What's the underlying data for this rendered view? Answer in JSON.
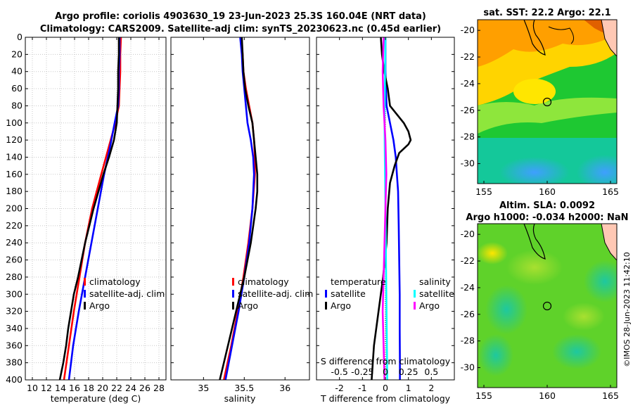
{
  "figure": {
    "title_line1": "Argo profile: coriolis 4903630_19 23-Jun-2023 25.3S 160.04E (NRT data)",
    "title_line2": "Climatology: CARS2009. Satellite-adj clim: synTS_20230623.nc (0.45d earlier)",
    "side_stamp": "©IMOS 28-Jun-2023 11:42:10"
  },
  "colors": {
    "climatology": "#ff0000",
    "satellite": "#0000ff",
    "argo": "#000000",
    "sat_salinity": "#00ffff",
    "argo_salinity": "#ff00ff"
  },
  "chart_data": [
    {
      "type": "line",
      "name": "temperature",
      "xlabel": "temperature (deg C)",
      "xlim": [
        9,
        29
      ],
      "ylim": [
        400,
        0
      ],
      "xticks": [
        10,
        12,
        14,
        16,
        18,
        20,
        22,
        24,
        26,
        28
      ],
      "yticks": [
        0,
        20,
        40,
        60,
        80,
        100,
        120,
        140,
        160,
        180,
        200,
        220,
        240,
        260,
        280,
        300,
        320,
        340,
        360,
        380,
        400
      ],
      "grid": true,
      "legend": [
        "climatology",
        "satellite-adj. clim",
        "Argo"
      ],
      "series": [
        {
          "name": "climatology",
          "color": "#ff0000",
          "depth": [
            0,
            20,
            40,
            60,
            80,
            100,
            130,
            160,
            200,
            240,
            280,
            320,
            360,
            400
          ],
          "values": [
            22.6,
            22.5,
            22.5,
            22.4,
            22.3,
            21.8,
            20.8,
            19.8,
            18.5,
            17.5,
            16.7,
            15.9,
            15.2,
            14.5
          ]
        },
        {
          "name": "satellite-adj. clim",
          "color": "#0000ff",
          "depth": [
            0,
            20,
            40,
            60,
            80,
            100,
            130,
            160,
            200,
            240,
            280,
            320,
            360,
            400
          ],
          "values": [
            22.4,
            22.4,
            22.3,
            22.3,
            22.2,
            21.7,
            21.0,
            20.2,
            19.3,
            18.4,
            17.5,
            16.6,
            15.8,
            15.2
          ]
        },
        {
          "name": "Argo",
          "color": "#000000",
          "depth": [
            0,
            20,
            40,
            60,
            80,
            100,
            120,
            140,
            160,
            180,
            200,
            220,
            240,
            260,
            280,
            300,
            320,
            340,
            360,
            380,
            400
          ],
          "values": [
            22.3,
            22.3,
            22.2,
            22.2,
            22.1,
            22.0,
            21.6,
            20.9,
            20.1,
            19.4,
            18.7,
            18.1,
            17.5,
            17.0,
            16.5,
            15.9,
            15.5,
            15.1,
            14.8,
            14.4,
            13.9
          ]
        }
      ]
    },
    {
      "type": "line",
      "name": "salinity",
      "xlabel": "salinity",
      "xlim": [
        34.6,
        36.3
      ],
      "ylim": [
        400,
        0
      ],
      "xticks": [
        35,
        35.5,
        36
      ],
      "legend": [
        "climatology",
        "satellite-adj. clim",
        "Argo"
      ],
      "series": [
        {
          "name": "climatology",
          "color": "#ff0000",
          "depth": [
            0,
            20,
            40,
            60,
            80,
            100,
            120,
            140,
            160,
            200,
            240,
            280,
            320,
            360,
            400
          ],
          "values": [
            35.46,
            35.48,
            35.49,
            35.52,
            35.56,
            35.6,
            35.62,
            35.63,
            35.63,
            35.6,
            35.55,
            35.49,
            35.42,
            35.34,
            35.25
          ]
        },
        {
          "name": "satellite-adj. clim",
          "color": "#0000ff",
          "depth": [
            0,
            20,
            40,
            60,
            80,
            100,
            120,
            140,
            160,
            200,
            240,
            280,
            320,
            360,
            400
          ],
          "values": [
            35.45,
            35.47,
            35.48,
            35.5,
            35.52,
            35.54,
            35.58,
            35.61,
            35.62,
            35.6,
            35.56,
            35.5,
            35.43,
            35.35,
            35.27
          ]
        },
        {
          "name": "Argo",
          "color": "#000000",
          "depth": [
            0,
            20,
            40,
            60,
            80,
            100,
            120,
            140,
            160,
            180,
            200,
            240,
            280,
            320,
            360,
            400
          ],
          "values": [
            35.47,
            35.48,
            35.49,
            35.51,
            35.55,
            35.6,
            35.62,
            35.64,
            35.66,
            35.66,
            35.64,
            35.58,
            35.5,
            35.4,
            35.3,
            35.2
          ]
        }
      ]
    },
    {
      "type": "line",
      "name": "differences",
      "xlabel": "T difference from climatology",
      "xlabel_top": "S difference from climatology",
      "xlim": [
        -3,
        3
      ],
      "ylim": [
        400,
        0
      ],
      "xticks": [
        -2,
        -1,
        0,
        1,
        2
      ],
      "xticks_top": [
        "-0.5",
        "-0.25",
        "0",
        "0.25",
        "0.5"
      ],
      "legend_temperature_title": "temperature",
      "legend_salinity_title": "salinity",
      "legend_temperature": [
        "satellite",
        "Argo"
      ],
      "legend_salinity": [
        "satellite",
        "Argo"
      ],
      "series": [
        {
          "name": "T satellite",
          "color": "#0000ff",
          "depth": [
            0,
            40,
            80,
            100,
            120,
            140,
            160,
            180,
            220,
            260,
            300,
            340,
            380,
            400
          ],
          "values": [
            0.0,
            0.0,
            0.05,
            0.2,
            0.35,
            0.45,
            0.5,
            0.55,
            0.58,
            0.6,
            0.62,
            0.62,
            0.63,
            0.63
          ]
        },
        {
          "name": "T Argo",
          "color": "#000000",
          "depth": [
            0,
            20,
            40,
            60,
            80,
            100,
            110,
            120,
            125,
            135,
            150,
            170,
            200,
            240,
            280,
            320,
            360,
            400
          ],
          "values": [
            -0.2,
            -0.15,
            -0.05,
            0.1,
            0.2,
            0.8,
            1.0,
            1.1,
            1.0,
            0.6,
            0.4,
            0.2,
            0.1,
            0.05,
            -0.1,
            -0.3,
            -0.5,
            -0.6
          ]
        },
        {
          "name": "S satellite",
          "color": "#00ffff",
          "depth": [
            0,
            100,
            200,
            300,
            400
          ],
          "values": [
            0.0,
            -0.01,
            0.0,
            0.01,
            0.02
          ]
        },
        {
          "name": "S Argo",
          "color": "#ff00ff",
          "depth": [
            0,
            40,
            80,
            120,
            160,
            200,
            240,
            280,
            320,
            360,
            400
          ],
          "values": [
            -0.02,
            -0.03,
            -0.02,
            0.0,
            0.01,
            0.0,
            -0.01,
            -0.02,
            -0.03,
            -0.02,
            -0.01
          ]
        }
      ]
    },
    {
      "type": "heatmap",
      "name": "sst_map",
      "title": "sat. SST: 22.2 Argo: 22.1",
      "xlim": [
        154.5,
        165.5
      ],
      "ylim": [
        -31.5,
        -19.2
      ],
      "xticks": [
        155,
        160,
        165
      ],
      "yticks": [
        -20,
        -22,
        -24,
        -26,
        -28,
        -30
      ],
      "marker": {
        "lon": 160.04,
        "lat": -25.3
      }
    },
    {
      "type": "heatmap",
      "name": "sla_map",
      "title_line1": "Altim. SLA: 0.0092",
      "title_line2": "Argo h1000: -0.034 h2000: NaN",
      "xlim": [
        154.5,
        165.5
      ],
      "ylim": [
        -31.5,
        -19.2
      ],
      "xticks": [
        155,
        160,
        165
      ],
      "yticks": [
        -20,
        -22,
        -24,
        -26,
        -28,
        -30
      ],
      "marker": {
        "lon": 160.04,
        "lat": -25.3
      }
    }
  ]
}
